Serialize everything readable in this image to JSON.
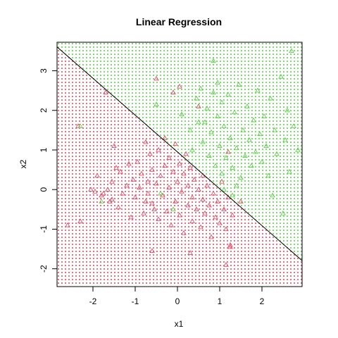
{
  "chart_data": {
    "type": "scatter",
    "title": "Linear Regression",
    "xlabel": "x1",
    "ylabel": "x2",
    "xlim": [
      -2.85,
      2.95
    ],
    "ylim": [
      -2.45,
      3.72
    ],
    "x_ticks": [
      "-2",
      "-1",
      "0",
      "1",
      "2"
    ],
    "y_ticks": [
      "-2",
      "-1",
      "0",
      "1",
      "2",
      "3"
    ],
    "decision_boundary": {
      "intercept": 0.95,
      "slope": -0.93
    },
    "colors": {
      "class_0": "#df536b",
      "class_1": "#61d04f",
      "boundary": "#000000"
    },
    "series": [
      {
        "values": [
          [
            -2.6,
            -0.9
          ],
          [
            -2.35,
            1.6
          ],
          [
            -2.3,
            -0.8
          ],
          [
            -2.05,
            0.0
          ],
          [
            -1.95,
            -0.05
          ],
          [
            -1.9,
            0.35
          ],
          [
            -1.8,
            -0.15
          ],
          [
            -1.75,
            -0.1
          ],
          [
            -1.65,
            0.0
          ],
          [
            -1.6,
            -0.3
          ],
          [
            -1.55,
            -0.25
          ],
          [
            -1.55,
            0.2
          ],
          [
            -1.5,
            1.1
          ],
          [
            -1.45,
            0.55
          ],
          [
            -1.4,
            -0.45
          ],
          [
            -1.35,
            0.45
          ],
          [
            -1.3,
            -0.1
          ],
          [
            -1.2,
            0.1
          ],
          [
            -1.15,
            0.65
          ],
          [
            -1.1,
            -0.7
          ],
          [
            -1.05,
            0.25
          ],
          [
            -1.0,
            -0.2
          ],
          [
            -0.95,
            0.7
          ],
          [
            -0.9,
            0.05
          ],
          [
            -0.85,
            0.4
          ],
          [
            -0.8,
            -0.6
          ],
          [
            -0.75,
            -0.3
          ],
          [
            -0.75,
            1.2
          ],
          [
            -0.7,
            0.2
          ],
          [
            -0.7,
            -0.1
          ],
          [
            -0.65,
            0.9
          ],
          [
            -0.6,
            0.5
          ],
          [
            -0.6,
            -0.35
          ],
          [
            -0.55,
            -0.5
          ],
          [
            -0.5,
            0.15
          ],
          [
            -0.45,
            -0.75
          ],
          [
            -0.45,
            1.0
          ],
          [
            -0.4,
            0.35
          ],
          [
            -0.35,
            -0.15
          ],
          [
            -0.3,
            0.6
          ],
          [
            -0.3,
            1.3
          ],
          [
            -0.25,
            -0.55
          ],
          [
            -0.2,
            0.05
          ],
          [
            -0.2,
            0.8
          ],
          [
            -0.15,
            -0.9
          ],
          [
            -0.1,
            0.45
          ],
          [
            -0.05,
            -0.3
          ],
          [
            -0.05,
            1.15
          ],
          [
            0.0,
            0.2
          ],
          [
            0.05,
            -0.65
          ],
          [
            0.05,
            0.65
          ],
          [
            0.1,
            -0.05
          ],
          [
            0.15,
            0.4
          ],
          [
            0.15,
            -1.1
          ],
          [
            0.2,
            0.9
          ],
          [
            0.25,
            -0.4
          ],
          [
            0.25,
            0.1
          ],
          [
            0.3,
            0.55
          ],
          [
            0.35,
            -0.8
          ],
          [
            0.35,
            -0.2
          ],
          [
            0.4,
            0.25
          ],
          [
            0.45,
            -0.5
          ],
          [
            0.5,
            0.0
          ],
          [
            0.55,
            -0.95
          ],
          [
            0.6,
            0.35
          ],
          [
            0.6,
            -0.25
          ],
          [
            0.65,
            -0.6
          ],
          [
            0.7,
            0.1
          ],
          [
            0.75,
            -0.4
          ],
          [
            0.8,
            -1.2
          ],
          [
            0.85,
            -0.1
          ],
          [
            0.9,
            -0.7
          ],
          [
            0.95,
            -0.3
          ],
          [
            1.0,
            -0.85
          ],
          [
            1.05,
            0.2
          ],
          [
            1.1,
            -0.5
          ],
          [
            1.15,
            -1.0
          ],
          [
            1.2,
            -0.2
          ],
          [
            1.25,
            -1.4
          ],
          [
            1.3,
            -0.65
          ],
          [
            -0.6,
            -1.55
          ],
          [
            0.3,
            -1.6
          ],
          [
            1.15,
            -1.9
          ],
          [
            1.5,
            -0.3
          ],
          [
            -1.7,
            2.45
          ],
          [
            -0.5,
            2.8
          ],
          [
            -0.1,
            2.45
          ],
          [
            0.05,
            2.6
          ],
          [
            1.25,
            -1.45
          ],
          [
            0.5,
            2.1
          ],
          [
            1.2,
            0.95
          ]
        ]
      },
      {
        "values": [
          [
            -2.3,
            1.6
          ],
          [
            -1.8,
            -0.3
          ],
          [
            -0.4,
            -0.1
          ],
          [
            -0.1,
            -0.5
          ],
          [
            0.35,
            1.0
          ],
          [
            0.45,
            2.3
          ],
          [
            0.55,
            2.55
          ],
          [
            0.6,
            1.2
          ],
          [
            0.65,
            1.7
          ],
          [
            0.7,
            2.05
          ],
          [
            0.75,
            0.85
          ],
          [
            0.8,
            1.45
          ],
          [
            0.85,
            2.45
          ],
          [
            0.85,
            3.25
          ],
          [
            0.9,
            0.6
          ],
          [
            0.95,
            1.85
          ],
          [
            0.95,
            2.7
          ],
          [
            1.0,
            1.1
          ],
          [
            1.05,
            2.2
          ],
          [
            1.05,
            0.4
          ],
          [
            1.1,
            1.6
          ],
          [
            1.15,
            0.8
          ],
          [
            1.2,
            2.4
          ],
          [
            1.25,
            1.3
          ],
          [
            1.3,
            0.55
          ],
          [
            1.35,
            1.95
          ],
          [
            1.4,
            1.05
          ],
          [
            1.45,
            2.65
          ],
          [
            1.5,
            0.3
          ],
          [
            1.55,
            1.5
          ],
          [
            1.6,
            0.85
          ],
          [
            1.65,
            2.1
          ],
          [
            1.7,
            1.25
          ],
          [
            1.75,
            0.6
          ],
          [
            1.8,
            1.75
          ],
          [
            1.85,
            0.95
          ],
          [
            1.9,
            2.5
          ],
          [
            1.95,
            1.4
          ],
          [
            2.0,
            0.7
          ],
          [
            2.05,
            1.85
          ],
          [
            2.1,
            1.1
          ],
          [
            2.15,
            0.35
          ],
          [
            2.2,
            2.3
          ],
          [
            2.25,
            -0.15
          ],
          [
            2.3,
            1.5
          ],
          [
            2.35,
            0.9
          ],
          [
            2.45,
            2.85
          ],
          [
            2.5,
            -0.6
          ],
          [
            2.55,
            1.25
          ],
          [
            2.6,
            2.0
          ],
          [
            2.65,
            0.45
          ],
          [
            2.7,
            3.5
          ],
          [
            2.75,
            1.6
          ],
          [
            2.85,
            1.0
          ],
          [
            1.1,
            0.0
          ],
          [
            1.3,
            -0.15
          ],
          [
            0.3,
            1.5
          ],
          [
            -0.5,
            2.15
          ],
          [
            0.1,
            1.9
          ],
          [
            0.5,
            1.7
          ],
          [
            1.4,
            0.1
          ]
        ]
      }
    ]
  }
}
